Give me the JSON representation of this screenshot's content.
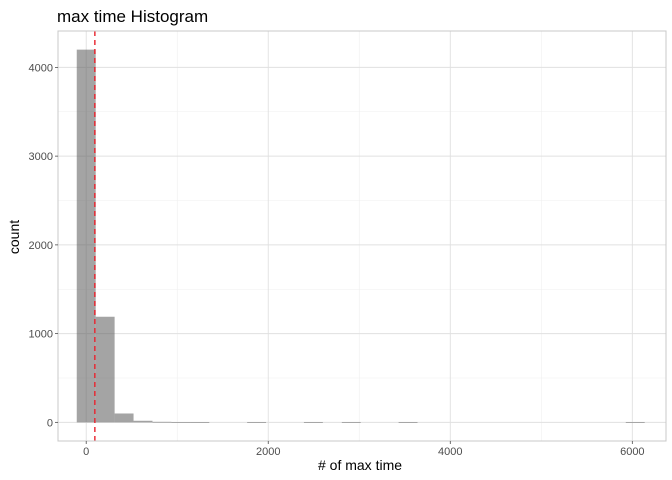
{
  "chart_data": {
    "type": "bar",
    "title": "max time Histogram",
    "xlabel": "# of max time",
    "ylabel": "count",
    "xlim": [
      -310,
      6370
    ],
    "ylim": [
      -210,
      4410
    ],
    "x_ticks": [
      0,
      2000,
      4000,
      6000
    ],
    "x_minor_ticks": [
      1000,
      3000,
      5000
    ],
    "y_ticks": [
      0,
      1000,
      2000,
      3000,
      4000
    ],
    "y_minor_ticks": [
      500,
      1500,
      2500,
      3500
    ],
    "grid": true,
    "bin_width": 208,
    "bins": [
      {
        "x0": -104,
        "x1": 104,
        "count": 4200
      },
      {
        "x0": 104,
        "x1": 312,
        "count": 1190
      },
      {
        "x0": 312,
        "x1": 520,
        "count": 100
      },
      {
        "x0": 520,
        "x1": 728,
        "count": 18
      },
      {
        "x0": 728,
        "x1": 936,
        "count": 6
      },
      {
        "x0": 936,
        "x1": 1144,
        "count": 4
      },
      {
        "x0": 1144,
        "x1": 1352,
        "count": 3
      },
      {
        "x0": 1768,
        "x1": 1976,
        "count": 2
      },
      {
        "x0": 2392,
        "x1": 2600,
        "count": 2
      },
      {
        "x0": 2808,
        "x1": 3016,
        "count": 3
      },
      {
        "x0": 3432,
        "x1": 3640,
        "count": 2
      },
      {
        "x0": 5928,
        "x1": 6136,
        "count": 2
      }
    ],
    "reference_line": {
      "x": 95,
      "style": "dashed",
      "color": "#e8202a"
    },
    "bar_color": "#595959"
  }
}
